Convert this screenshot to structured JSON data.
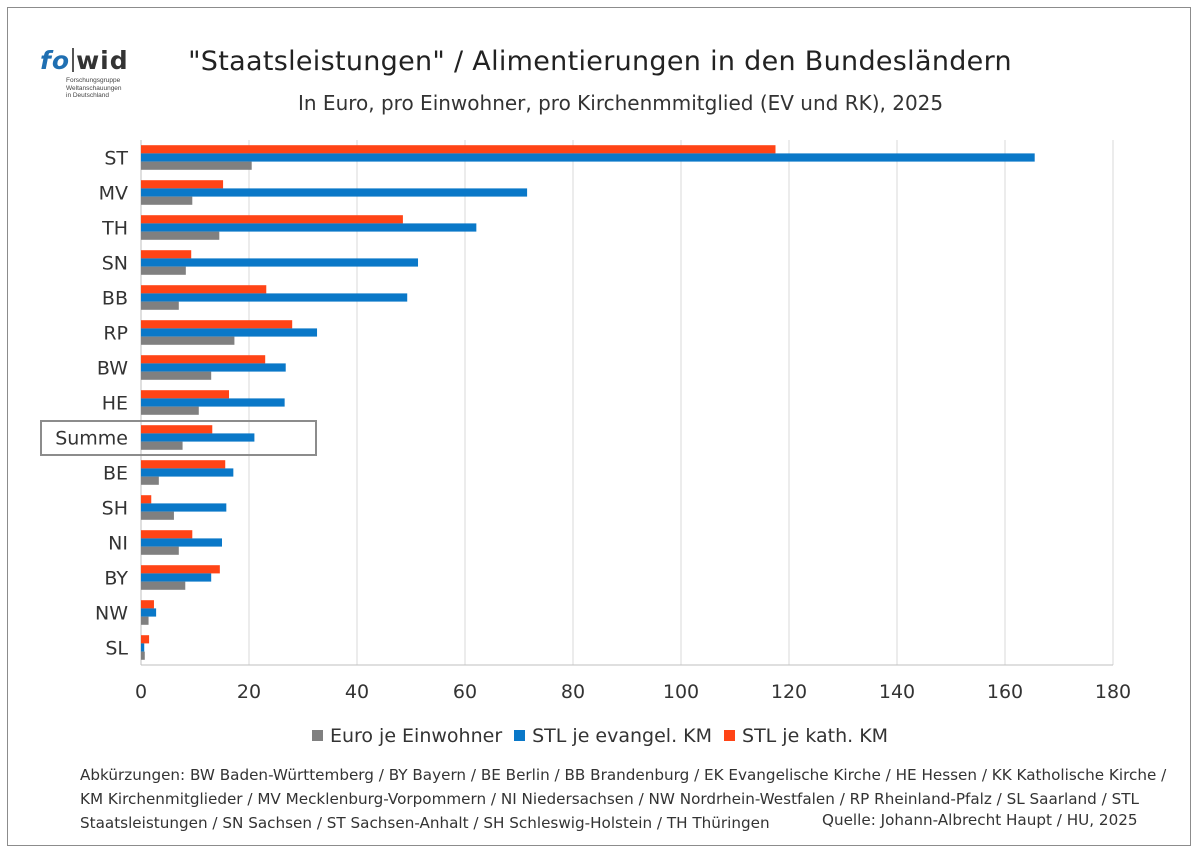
{
  "logo": {
    "fo": "fo",
    "wid": "wid",
    "sub_lines": [
      "Forschungsgruppe",
      "Weltanschauungen",
      "in Deutschland"
    ]
  },
  "title": "\"Staatsleistungen\" / Alimentierungen in den Bundesländern",
  "subtitle": "In Euro, pro Einwohner, pro Kirchenmmitglied (EV und RK), 2025",
  "footnote": {
    "lines": [
      "Abkürzungen: BW Baden-Württemberg / BY Bayern / BE Berlin / BB Brandenburg / EK Evangelische Kirche / HE Hessen / KK Katholische Kirche /",
      "KM Kirchenmitglieder / MV Mecklenburg-Vorpommern / NI Niedersachsen / NW Nordrhein-Westfalen / RP Rheinland-Pfalz / SL Saarland / STL",
      "Staatsleistungen / SN Sachsen / ST Sachsen-Anhalt / SH Schleswig-Holstein / TH Thüringen"
    ],
    "source": "Quelle: Johann-Albrecht Haupt / HU, 2025"
  },
  "chart_data": {
    "type": "bar",
    "orientation": "horizontal",
    "categories": [
      "ST",
      "MV",
      "TH",
      "SN",
      "BB",
      "RP",
      "BW",
      "HE",
      "Summe",
      "BE",
      "SH",
      "NI",
      "BY",
      "NW",
      "SL"
    ],
    "highlighted_category": "Summe",
    "series": [
      {
        "name": "Euro je Einwohner",
        "color": "#808080",
        "values": [
          20.5,
          9.5,
          14.5,
          8.3,
          7.0,
          17.3,
          13.0,
          10.7,
          7.7,
          3.3,
          6.1,
          7.0,
          8.2,
          1.4,
          0.7
        ]
      },
      {
        "name": "STL je evangel. KM",
        "color": "#0a78c8",
        "values": [
          165.5,
          71.5,
          62.1,
          51.3,
          49.3,
          32.6,
          26.8,
          26.6,
          21.0,
          17.1,
          15.8,
          15.0,
          13.0,
          2.8,
          0.6
        ]
      },
      {
        "name": "STL je kath. KM",
        "color": "#ff4416",
        "values": [
          117.5,
          15.2,
          48.5,
          9.3,
          23.2,
          28.0,
          23.0,
          16.3,
          13.2,
          15.6,
          1.9,
          9.5,
          14.6,
          2.4,
          1.5
        ]
      }
    ],
    "xlim": [
      0,
      180
    ],
    "xticks": [
      0,
      20,
      40,
      60,
      80,
      100,
      120,
      140,
      160,
      180
    ],
    "grid": true,
    "legend_position": "bottom"
  }
}
